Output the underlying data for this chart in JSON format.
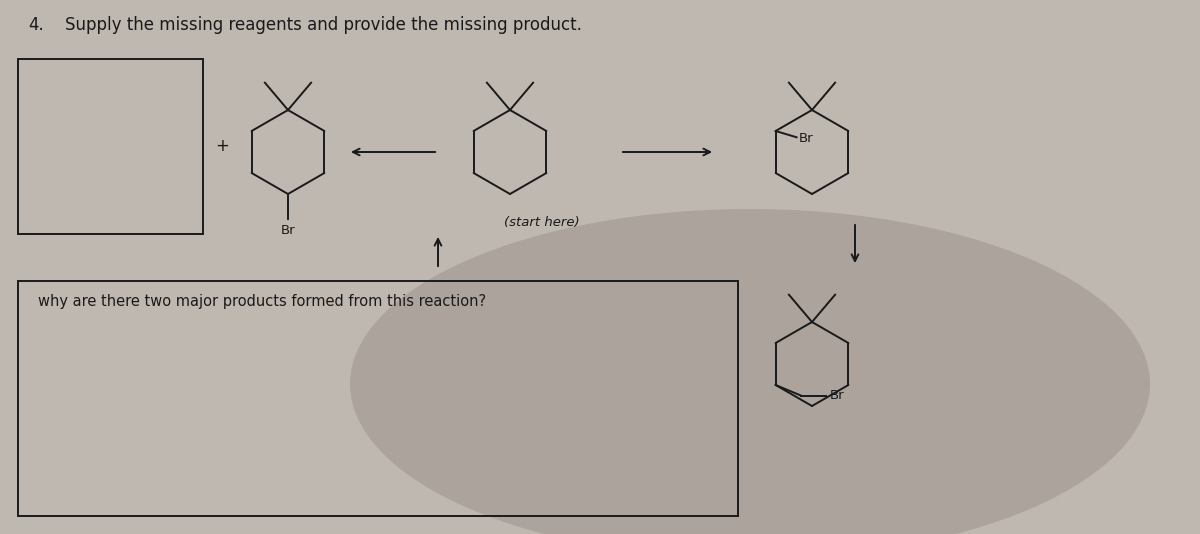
{
  "title_num": "4.",
  "title_text": "Supply the missing reagents and provide the missing product.",
  "title_fontsize": 12,
  "bg_color": "#bfb8b0",
  "line_color": "#1a1a1a",
  "text_color": "#1a1a1a",
  "question_text": "why are there two major products formed from this reaction?",
  "start_here_text": "(start here)",
  "fig_width": 12.0,
  "fig_height": 5.34,
  "mol_scale": 0.42,
  "lw": 1.4
}
